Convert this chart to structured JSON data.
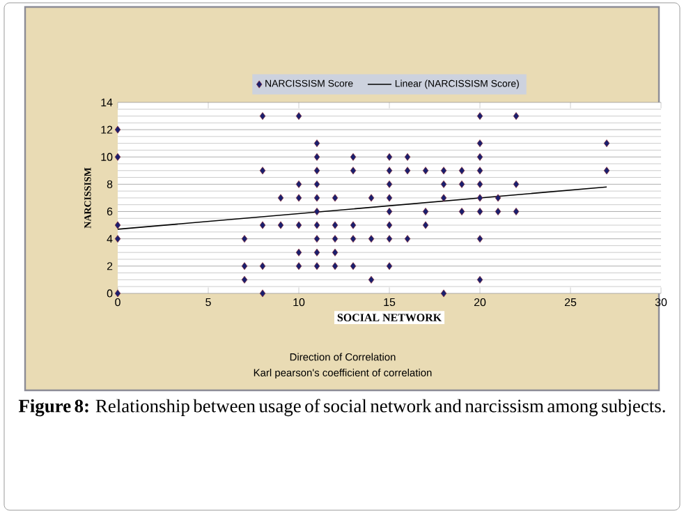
{
  "chart_data": {
    "type": "scatter",
    "xlabel": "SOCIAL NETWORK",
    "ylabel": "NARCISSISM",
    "xlim": [
      0,
      30
    ],
    "xticks": [
      0,
      5,
      10,
      15,
      20,
      25,
      30
    ],
    "ylim": [
      0,
      14
    ],
    "yticks": [
      0,
      2,
      4,
      6,
      8,
      10,
      12,
      14
    ],
    "grid": "y",
    "legend": "top",
    "series": [
      {
        "name": "NARCISSISM Score",
        "marker": "diamond",
        "color": "#1a1f6e",
        "x": [
          0,
          0,
          0,
          0,
          0,
          7,
          7,
          7,
          8,
          8,
          8,
          8,
          8,
          9,
          9,
          10,
          10,
          10,
          10,
          10,
          10,
          11,
          11,
          11,
          11,
          11,
          11,
          11,
          11,
          11,
          11,
          12,
          12,
          12,
          12,
          12,
          13,
          13,
          13,
          13,
          13,
          14,
          14,
          14,
          15,
          15,
          15,
          15,
          15,
          15,
          15,
          15,
          16,
          16,
          16,
          17,
          17,
          17,
          18,
          18,
          18,
          18,
          19,
          19,
          19,
          20,
          20,
          20,
          20,
          20,
          20,
          20,
          20,
          20,
          21,
          21,
          22,
          22,
          22,
          27,
          27
        ],
        "values": [
          12,
          10,
          5,
          4,
          0,
          4,
          2,
          1,
          13,
          9,
          5,
          2,
          0,
          7,
          5,
          13,
          8,
          7,
          5,
          3,
          2,
          11,
          10,
          9,
          8,
          7,
          6,
          5,
          4,
          3,
          2,
          7,
          5,
          4,
          3,
          2,
          10,
          9,
          5,
          4,
          2,
          7,
          4,
          1,
          10,
          9,
          8,
          7,
          6,
          5,
          4,
          2,
          10,
          9,
          4,
          9,
          6,
          5,
          9,
          8,
          7,
          0,
          9,
          8,
          6,
          13,
          11,
          10,
          9,
          8,
          7,
          6,
          4,
          1,
          7,
          6,
          13,
          8,
          6,
          11,
          9
        ]
      },
      {
        "name": "Linear (NARCISSISM Score)",
        "type": "line",
        "marker": "none",
        "line_style": "solid",
        "color": "#000000",
        "x": [
          0,
          27
        ],
        "values": [
          4.7,
          7.8
        ]
      }
    ],
    "annotations": [
      "Direction of Correlation",
      "Karl pearson's coefficient of correlation",
      "**Figure 8:** Relationship between usage of social network and narcissism among subjects."
    ]
  }
}
